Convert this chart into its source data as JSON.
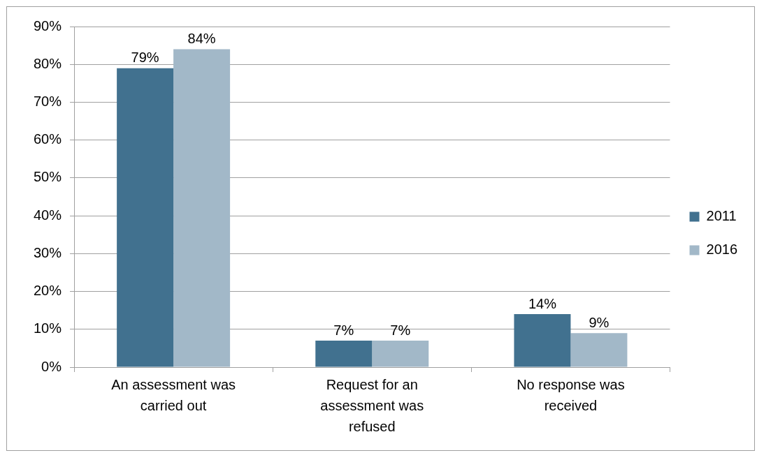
{
  "chart_data": {
    "type": "bar",
    "categories": [
      "An assessment was carried out",
      "Request for an assessment was refused",
      "No response was received"
    ],
    "series": [
      {
        "name": "2011",
        "color": "#41718f",
        "values": [
          79,
          7,
          14
        ],
        "value_labels": [
          "79%",
          "7%",
          "14%"
        ]
      },
      {
        "name": "2016",
        "color": "#a2b8c8",
        "values": [
          84,
          7,
          9
        ],
        "value_labels": [
          "84%",
          "7%",
          "9%"
        ]
      }
    ],
    "ylim": [
      0,
      90
    ],
    "yticks": [
      {
        "value": 0,
        "label": "0%"
      },
      {
        "value": 10,
        "label": "10%"
      },
      {
        "value": 20,
        "label": "20%"
      },
      {
        "value": 30,
        "label": "30%"
      },
      {
        "value": 40,
        "label": "40%"
      },
      {
        "value": 50,
        "label": "50%"
      },
      {
        "value": 60,
        "label": "60%"
      },
      {
        "value": 70,
        "label": "70%"
      },
      {
        "value": 80,
        "label": "80%"
      },
      {
        "value": 90,
        "label": "90%"
      }
    ],
    "grid": "y",
    "legend": "right"
  }
}
